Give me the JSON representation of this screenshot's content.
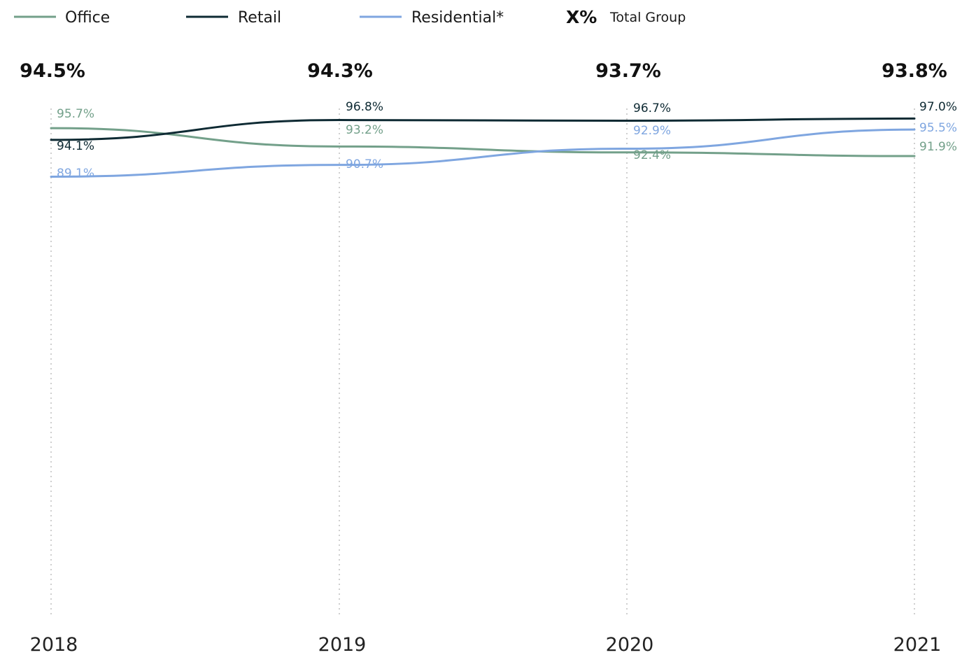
{
  "legend": {
    "items": [
      {
        "label": "Office",
        "color": "#73a08a"
      },
      {
        "label": "Retail",
        "color": "#0e2a33"
      },
      {
        "label": "Residential*",
        "color": "#7fa6e0"
      }
    ],
    "total_marker": "X%",
    "total_label": "Total Group"
  },
  "chart_data": {
    "type": "line",
    "x": [
      "2018",
      "2019",
      "2020",
      "2021"
    ],
    "totals": [
      "94.5%",
      "94.3%",
      "93.7%",
      "93.8%"
    ],
    "series": [
      {
        "name": "Office",
        "values": [
          95.7,
          93.2,
          92.4,
          91.9
        ],
        "labels": [
          "95.7%",
          "93.2%",
          "92.4%",
          "91.9%"
        ],
        "color": "#73a08a"
      },
      {
        "name": "Retail",
        "values": [
          94.1,
          96.8,
          96.7,
          97.0
        ],
        "labels": [
          "94.1%",
          "96.8%",
          "96.7%",
          "97.0%"
        ],
        "color": "#0e2a33"
      },
      {
        "name": "Residential*",
        "values": [
          89.1,
          90.7,
          92.9,
          95.5
        ],
        "labels": [
          "89.1%",
          "90.7%",
          "92.9%",
          "95.5%"
        ],
        "color": "#7fa6e0"
      }
    ],
    "unit": "%",
    "grid": "vertical dotted lines at each year"
  }
}
